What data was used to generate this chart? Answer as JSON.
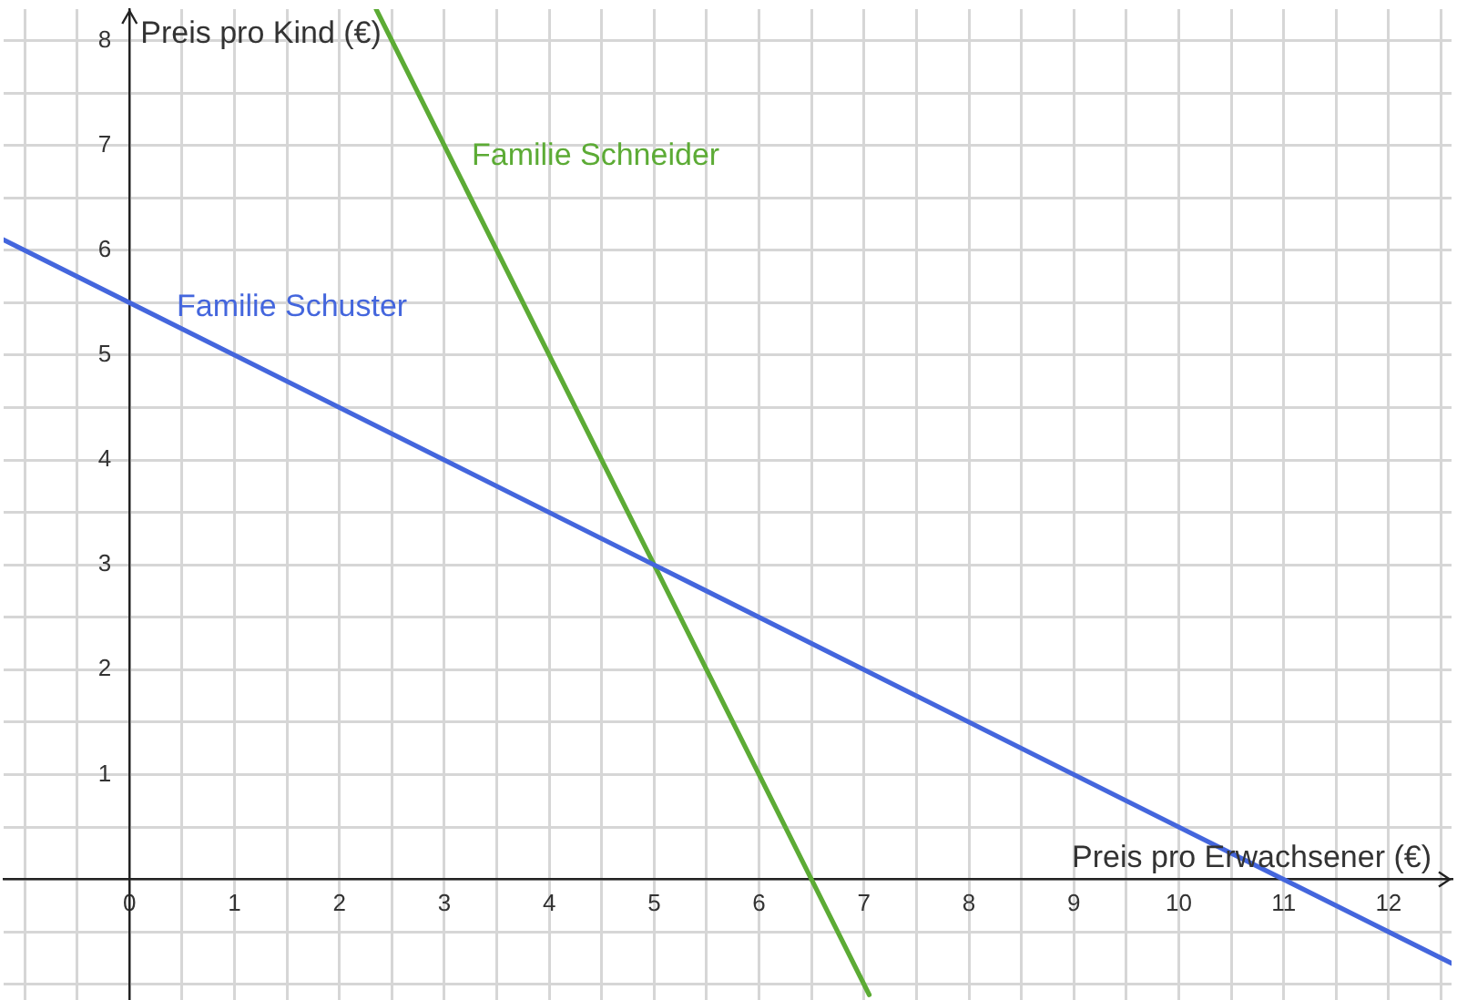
{
  "chart_data": {
    "type": "line",
    "xlabel": "Preis pro Erwachsener (€)",
    "ylabel": "Preis pro Kind (€)",
    "xlim": [
      -1.2,
      12.6
    ],
    "ylim": [
      -1.15,
      8.3
    ],
    "xticks": [
      {
        "value": -1,
        "label": null
      },
      {
        "value": -0.5,
        "label": null
      },
      0,
      {
        "value": 0.5,
        "label": null
      },
      1,
      {
        "value": 1.5,
        "label": null
      },
      2,
      {
        "value": 2.5,
        "label": null
      },
      3,
      {
        "value": 3.5,
        "label": null
      },
      4,
      {
        "value": 4.5,
        "label": null
      },
      5,
      {
        "value": 5.5,
        "label": null
      },
      6,
      {
        "value": 6.5,
        "label": null
      },
      7,
      {
        "value": 7.5,
        "label": null
      },
      8,
      {
        "value": 8.5,
        "label": null
      },
      9,
      {
        "value": 9.5,
        "label": null
      },
      10,
      {
        "value": 10.5,
        "label": null
      },
      11,
      {
        "value": 11.5,
        "label": null
      },
      12,
      {
        "value": 12.5,
        "label": null
      }
    ],
    "yticks": [
      {
        "value": -1,
        "label": null
      },
      {
        "value": -0.5,
        "label": null
      },
      {
        "value": 0,
        "label": null
      },
      {
        "value": 0.5,
        "label": null
      },
      1,
      {
        "value": 1.5,
        "label": null
      },
      2,
      {
        "value": 2.5,
        "label": null
      },
      3,
      {
        "value": 3.5,
        "label": null
      },
      4,
      {
        "value": 4.5,
        "label": null
      },
      5,
      {
        "value": 5.5,
        "label": null
      },
      6,
      {
        "value": 6.5,
        "label": null
      },
      7,
      {
        "value": 7.5,
        "label": null
      },
      8
    ],
    "grid": true,
    "legend": false,
    "marker": "none",
    "line_style": "solid",
    "series": [
      {
        "name": "Familie Schuster",
        "color": "#4466dd",
        "x": [
          -1.2,
          0,
          5,
          11,
          12.6
        ],
        "values": [
          6.1,
          5.5,
          3,
          0,
          -0.8
        ]
      },
      {
        "name": "Familie Schneider",
        "color": "#5cab35",
        "x": [
          2.35,
          5,
          6.5,
          7.05
        ],
        "values": [
          8.3,
          3,
          0,
          -1.1
        ]
      }
    ]
  }
}
